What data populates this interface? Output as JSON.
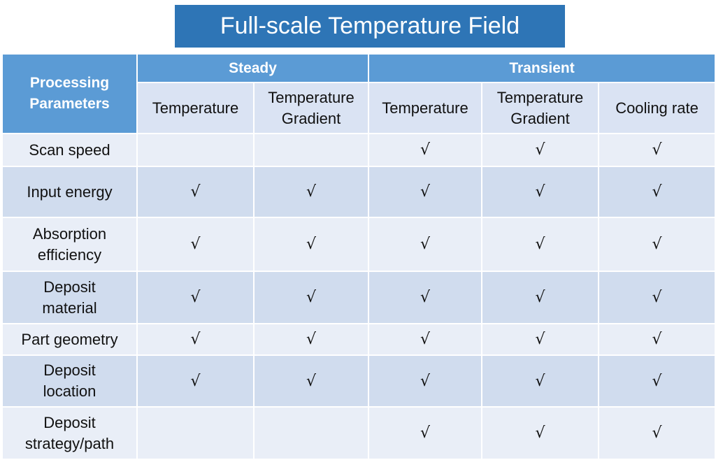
{
  "title": "Full-scale Temperature Field",
  "table": {
    "corner": "Processing Parameters",
    "groups": [
      "Steady",
      "Transient"
    ],
    "columns": [
      "Temperature",
      "Temperature Gradient",
      "Temperature",
      "Temperature Gradient",
      "Cooling rate"
    ],
    "rows": [
      {
        "label": "Scan speed",
        "cells": [
          null,
          null,
          "√",
          "√",
          "√"
        ]
      },
      {
        "label": "Input energy",
        "cells": [
          "√",
          "√",
          "√",
          "√",
          "√"
        ]
      },
      {
        "label": "Absorption efficiency",
        "cells": [
          "√",
          "√",
          "√",
          "√",
          "√"
        ]
      },
      {
        "label": "Deposit material",
        "cells": [
          "√",
          "√",
          "√",
          "√",
          "√"
        ]
      },
      {
        "label": "Part geometry",
        "cells": [
          "√",
          "√",
          "√",
          "√",
          "√"
        ]
      },
      {
        "label": "Deposit location",
        "cells": [
          "√",
          "√",
          "√",
          "√",
          "√"
        ]
      },
      {
        "label": "Deposit strategy/path",
        "cells": [
          null,
          null,
          "√",
          "√",
          "√"
        ]
      }
    ]
  }
}
